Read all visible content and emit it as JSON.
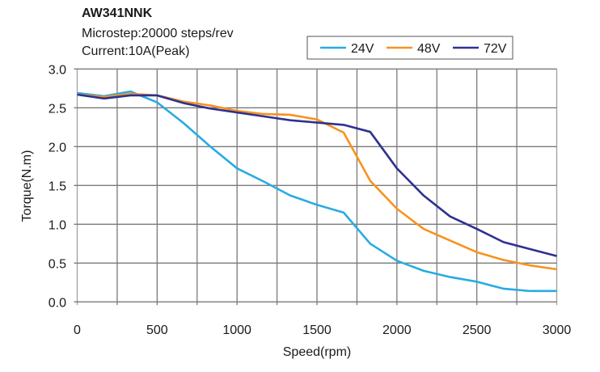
{
  "header": {
    "title": "AW341NNK",
    "line1": "Microstep:20000 steps/rev",
    "line2": "Current:10A(Peak)"
  },
  "chart_data": {
    "type": "line",
    "title": "AW341NNK",
    "xlabel": "Speed(rpm)",
    "ylabel": "Torque(N.m)",
    "xlim": [
      0,
      3000
    ],
    "ylim": [
      0,
      3.0
    ],
    "xticks": [
      "0",
      "500",
      "1000",
      "1500",
      "2000",
      "2500",
      "3000"
    ],
    "yticks": [
      "0.0",
      "0.5",
      "1.0",
      "1.5",
      "2.0",
      "2.5",
      "3.0"
    ],
    "grid": true,
    "legend_position": "top-right",
    "x": [
      0,
      167,
      333,
      500,
      667,
      833,
      1000,
      1167,
      1333,
      1500,
      1667,
      1833,
      2000,
      2167,
      2333,
      2500,
      2667,
      2833,
      3000
    ],
    "series": [
      {
        "name": "24V",
        "color": "#29abe2",
        "values": [
          2.69,
          2.65,
          2.71,
          2.57,
          2.3,
          2.0,
          1.72,
          1.55,
          1.37,
          1.25,
          1.15,
          0.75,
          0.53,
          0.4,
          0.32,
          0.26,
          0.17,
          0.14,
          0.14
        ]
      },
      {
        "name": "48V",
        "color": "#f7931e",
        "values": [
          2.67,
          2.64,
          2.68,
          2.66,
          2.58,
          2.53,
          2.46,
          2.42,
          2.41,
          2.35,
          2.18,
          1.56,
          1.2,
          0.94,
          0.79,
          0.64,
          0.54,
          0.47,
          0.42
        ]
      },
      {
        "name": "72V",
        "color": "#2e3192",
        "values": [
          2.67,
          2.62,
          2.66,
          2.66,
          2.56,
          2.49,
          2.44,
          2.39,
          2.34,
          2.31,
          2.28,
          2.19,
          1.72,
          1.37,
          1.1,
          0.94,
          0.77,
          0.68,
          0.59
        ]
      }
    ]
  }
}
